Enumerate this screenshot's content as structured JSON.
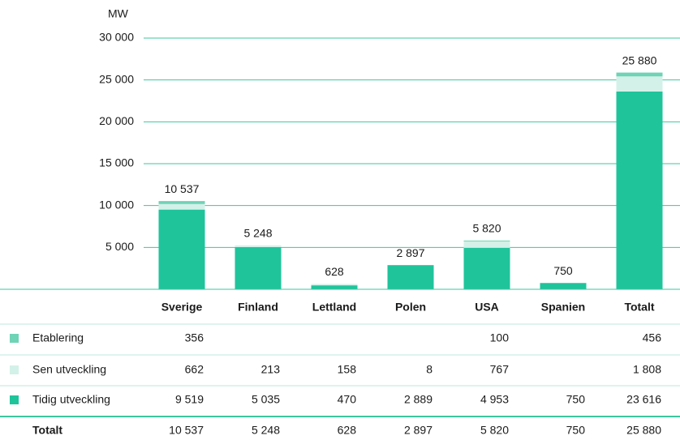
{
  "chart_data": {
    "type": "bar",
    "stacked": true,
    "y_unit": "MW",
    "categories": [
      "Sverige",
      "Finland",
      "Lettland",
      "Polen",
      "USA",
      "Spanien",
      "Totalt"
    ],
    "series": [
      {
        "name": "Etablering",
        "color": "#6fd3b5",
        "values": [
          356,
          null,
          null,
          null,
          100,
          null,
          456
        ],
        "value_labels": [
          "356",
          null,
          null,
          null,
          "100",
          null,
          "456"
        ]
      },
      {
        "name": "Sen utveckling",
        "color": "#d3f1e8",
        "values": [
          662,
          213,
          158,
          8,
          767,
          null,
          1808
        ],
        "value_labels": [
          "662",
          "213",
          "158",
          "8",
          "767",
          null,
          "1 808"
        ]
      },
      {
        "name": "Tidig utveckling",
        "color": "#1fc49b",
        "values": [
          9519,
          5035,
          470,
          2889,
          4953,
          750,
          23616
        ],
        "value_labels": [
          "9 519",
          "5 035",
          "470",
          "2 889",
          "4 953",
          "750",
          "23 616"
        ]
      }
    ],
    "totals_name": "Totalt",
    "totals": [
      10537,
      5248,
      628,
      2897,
      5820,
      750,
      25880
    ],
    "totals_labels": [
      "10 537",
      "5 248",
      "628",
      "2 897",
      "5 820",
      "750",
      "25 880"
    ],
    "ylim": [
      0,
      30000
    ],
    "yticks": [
      {
        "value": 5000,
        "label": "5 000"
      },
      {
        "value": 10000,
        "label": "10 000"
      },
      {
        "value": 15000,
        "label": "15 000"
      },
      {
        "value": 20000,
        "label": "20 000"
      },
      {
        "value": 25000,
        "label": "25 000"
      },
      {
        "value": 30000,
        "label": "30 000"
      }
    ],
    "grid": true
  }
}
